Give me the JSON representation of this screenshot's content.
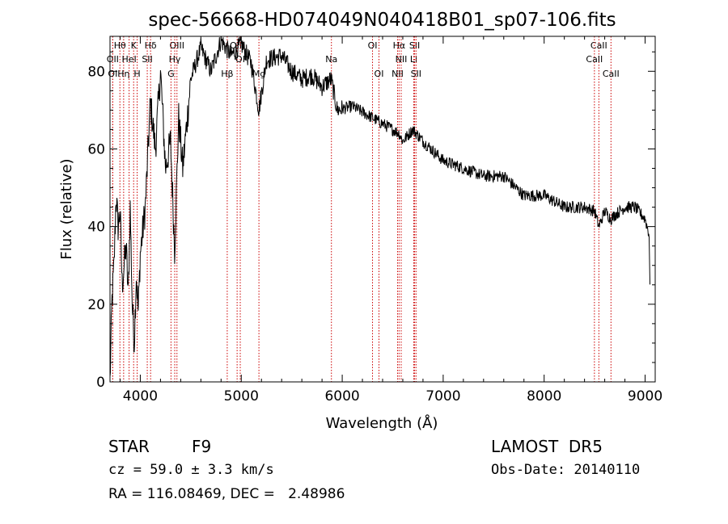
{
  "title": "spec-56668-HD074049N040418B01_sp07-106.fits",
  "info": {
    "obj_class": "STAR",
    "subclass": "F9",
    "redshift": "cz = 59.0 ± 3.3 km/s",
    "coords": "RA = 116.08469, DEC =   2.48986",
    "survey": "LAMOST  DR5",
    "obs_date": "Obs-Date: 20140110"
  },
  "chart_data": {
    "type": "line",
    "xlabel": "Wavelength (Å)",
    "ylabel": "Flux (relative)",
    "xlim": [
      3700,
      9100
    ],
    "ylim": [
      0,
      89
    ],
    "x_ticks": [
      4000,
      5000,
      6000,
      7000,
      8000,
      9000
    ],
    "y_ticks": [
      0,
      20,
      40,
      60,
      80
    ],
    "grid": false,
    "line_color": "#000000",
    "marker_color": "#cc0000",
    "spectrum": {
      "x": [
        3700,
        3720,
        3740,
        3760,
        3780,
        3800,
        3820,
        3840,
        3860,
        3880,
        3900,
        3920,
        3940,
        3960,
        3980,
        4000,
        4050,
        4100,
        4150,
        4200,
        4250,
        4300,
        4340,
        4380,
        4420,
        4500,
        4600,
        4700,
        4800,
        4850,
        4900,
        5000,
        5100,
        5175,
        5250,
        5400,
        5500,
        5600,
        5700,
        5800,
        5890,
        5950,
        6100,
        6300,
        6500,
        6563,
        6600,
        6700,
        6800,
        7000,
        7200,
        7400,
        7600,
        7800,
        8000,
        8200,
        8400,
        8500,
        8542,
        8600,
        8662,
        8700,
        8800,
        8900,
        9000,
        9020,
        9040,
        9050
      ],
      "y": [
        0,
        21,
        30,
        48,
        40,
        44,
        25,
        30,
        35,
        22,
        45,
        20,
        10,
        28,
        18,
        33,
        45,
        72,
        60,
        80,
        55,
        62,
        34,
        68,
        55,
        78,
        86,
        80,
        88,
        86,
        84,
        87,
        82,
        70,
        83,
        84,
        80,
        78,
        79,
        76,
        78,
        70,
        71,
        68,
        65,
        64,
        62,
        65,
        62,
        57,
        55,
        53,
        53,
        48,
        48,
        45,
        45,
        44,
        40,
        44,
        42,
        43,
        45,
        45,
        42,
        40,
        38,
        20
      ]
    },
    "line_markers": [
      {
        "label": "Hθ",
        "x": 3798,
        "row": 1
      },
      {
        "label": "OII",
        "x": 3727,
        "row": 2
      },
      {
        "label": "Hη",
        "x": 3835,
        "row": 3
      },
      {
        "label": "OI",
        "x": 3727,
        "row": 3
      },
      {
        "label": "K",
        "x": 3934,
        "row": 1
      },
      {
        "label": "HeI",
        "x": 3889,
        "row": 2
      },
      {
        "label": "H",
        "x": 3969,
        "row": 3
      },
      {
        "label": "Hδ",
        "x": 4102,
        "row": 1
      },
      {
        "label": "SII",
        "x": 4069,
        "row": 2
      },
      {
        "label": "OIII",
        "x": 4363,
        "row": 1
      },
      {
        "label": "Hγ",
        "x": 4341,
        "row": 2
      },
      {
        "label": "G",
        "x": 4304,
        "row": 3
      },
      {
        "label": "OIII",
        "x": 4959,
        "row": 1
      },
      {
        "label": "OI",
        "x": 4990,
        "row": 2
      },
      {
        "label": "Hβ",
        "x": 4861,
        "row": 3
      },
      {
        "label": "Mg",
        "x": 5175,
        "row": 3
      },
      {
        "label": "Na",
        "x": 5893,
        "row": 2
      },
      {
        "label": "OI",
        "x": 6300,
        "row": 1
      },
      {
        "label": "OI",
        "x": 6364,
        "row": 3
      },
      {
        "label": "Hα",
        "x": 6563,
        "row": 1
      },
      {
        "label": "NII",
        "x": 6584,
        "row": 2
      },
      {
        "label": "NII",
        "x": 6548,
        "row": 3
      },
      {
        "label": "SII",
        "x": 6717,
        "row": 1
      },
      {
        "label": "Li",
        "x": 6708,
        "row": 2
      },
      {
        "label": "SII",
        "x": 6731,
        "row": 3
      },
      {
        "label": "CaII",
        "x": 8542,
        "row": 1
      },
      {
        "label": "CaII",
        "x": 8498,
        "row": 2
      },
      {
        "label": "CaII",
        "x": 8662,
        "row": 3
      }
    ]
  }
}
